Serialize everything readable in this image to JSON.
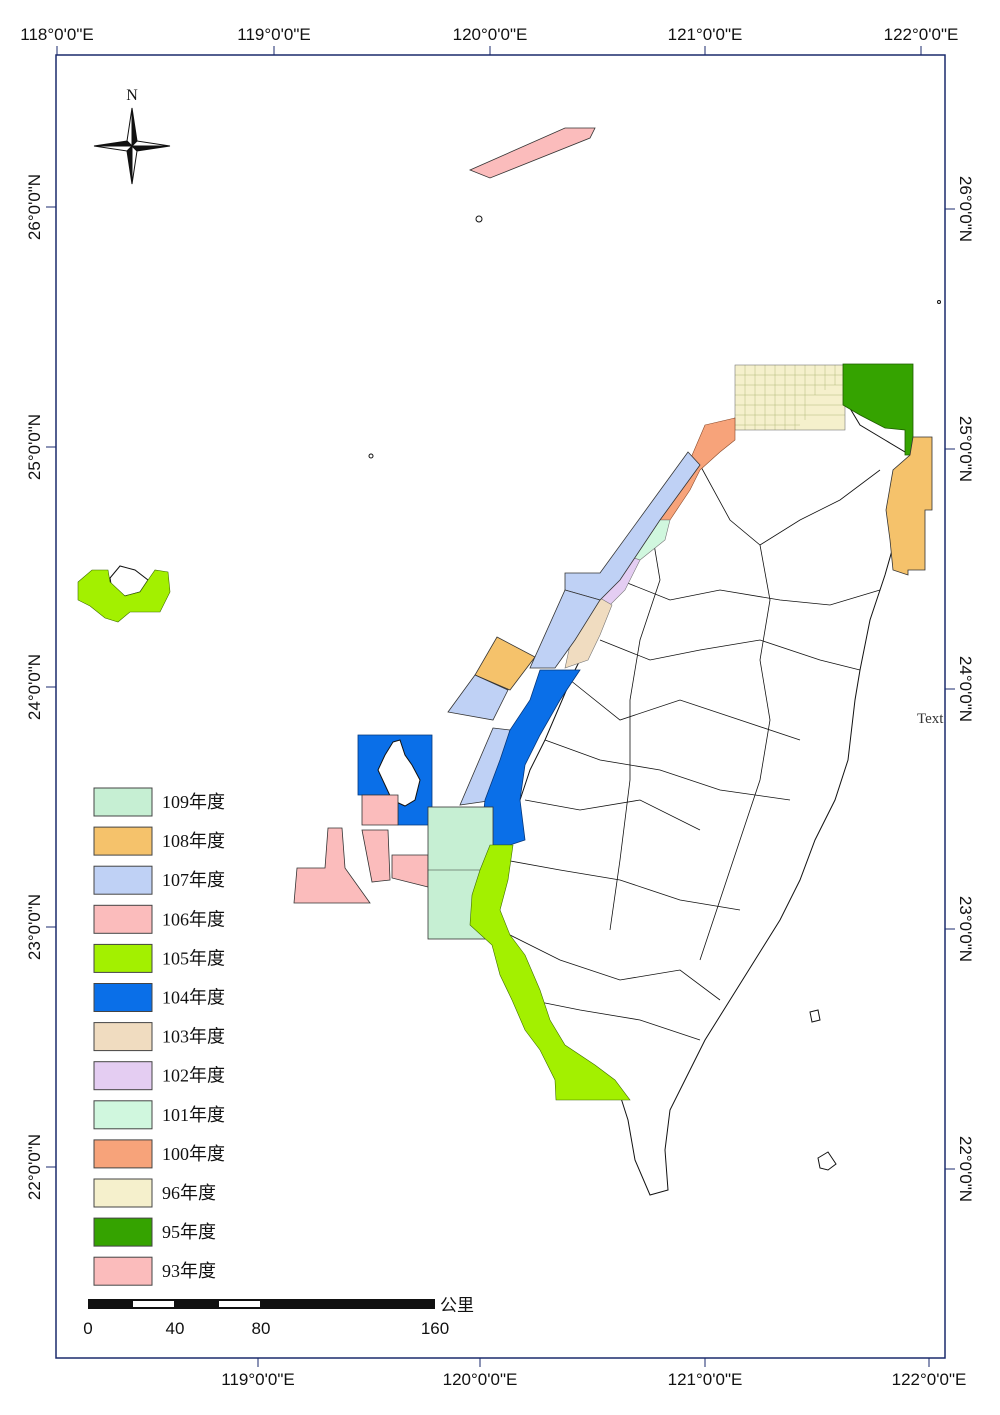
{
  "map": {
    "lon_labels_top": [
      "118°0'0\"E",
      "119°0'0\"E",
      "120°0'0\"E",
      "121°0'0\"E",
      "122°0'0\"E"
    ],
    "lon_labels_bottom": [
      "119°0'0\"E",
      "120°0'0\"E",
      "121°0'0\"E",
      "122°0'0\"E"
    ],
    "lat_labels": [
      "26°0'0\"N",
      "25°0'0\"N",
      "24°0'0\"N",
      "23°0'0\"N",
      "22°0'0\"N"
    ],
    "north_label": "N",
    "stray_text": "Text"
  },
  "legend": {
    "items": [
      {
        "label": "109年度",
        "color": "#c6efd3"
      },
      {
        "label": "108年度",
        "color": "#f5c26b"
      },
      {
        "label": "107年度",
        "color": "#bfd1f5"
      },
      {
        "label": "106年度",
        "color": "#fbbcbc"
      },
      {
        "label": "105年度",
        "color": "#a3f000"
      },
      {
        "label": "104年度",
        "color": "#0a6fe8"
      },
      {
        "label": "103年度",
        "color": "#f0dcc0"
      },
      {
        "label": "102年度",
        "color": "#e4cdf2"
      },
      {
        "label": "101年度",
        "color": "#d0f7de"
      },
      {
        "label": "100年度",
        "color": "#f7a37a"
      },
      {
        "label": "96年度",
        "color": "#f5f0cc"
      },
      {
        "label": "95年度",
        "color": "#35a300"
      },
      {
        "label": "93年度",
        "color": "#fbbcbc"
      }
    ]
  },
  "scale_bar": {
    "unit": "公里",
    "labels": [
      "0",
      "40",
      "80",
      "160"
    ]
  }
}
